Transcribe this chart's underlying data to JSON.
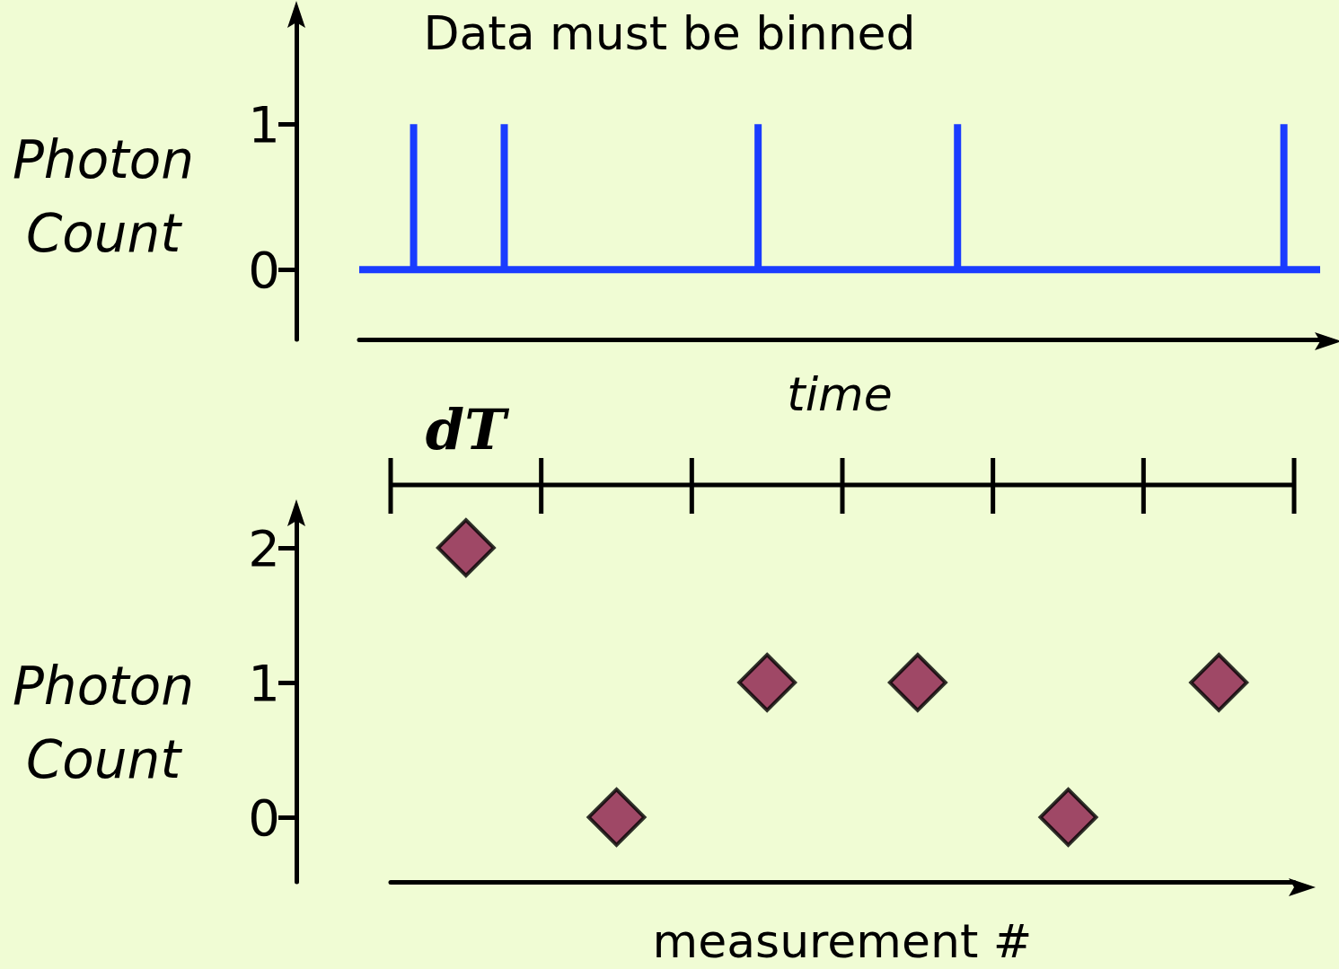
{
  "chart_data": [
    {
      "type": "line",
      "title": "Data must be binned",
      "xlabel": "time",
      "ylabel": "Photon Count",
      "categories": [
        null,
        null,
        null,
        null,
        null,
        null,
        null,
        null,
        null,
        null,
        null,
        null,
        null,
        null,
        null,
        null,
        null,
        null,
        null,
        null,
        null,
        null,
        null,
        null,
        null,
        null,
        null,
        null,
        null,
        null,
        null,
        null,
        null,
        null,
        null,
        null,
        null,
        null,
        null,
        null,
        null,
        null,
        null,
        null,
        null,
        null,
        null,
        null,
        null,
        null,
        null,
        null,
        null,
        null
      ],
      "series": [
        {
          "type": "line",
          "color": "#1a3cff",
          "values": [
            0,
            0,
            0,
            0,
            0,
            0,
            0,
            0,
            0,
            0,
            0,
            0,
            0,
            0,
            0,
            0,
            0,
            0,
            0,
            0,
            0,
            0,
            0,
            0,
            0,
            0,
            0,
            0,
            0,
            0,
            0,
            0,
            0,
            0,
            0,
            0,
            0,
            0,
            0,
            0,
            0,
            0,
            0,
            0,
            0,
            0,
            0,
            0,
            0,
            0,
            0,
            0,
            0,
            0
          ]
        },
        {
          "type": "bar",
          "color": "#1a3cff",
          "values": [
            null,
            null,
            null,
            1,
            null,
            null,
            null,
            null,
            1,
            null,
            null,
            null,
            null,
            null,
            null,
            null,
            null,
            null,
            null,
            null,
            null,
            null,
            1,
            null,
            null,
            null,
            null,
            null,
            null,
            null,
            null,
            null,
            null,
            1,
            null,
            null,
            null,
            null,
            null,
            null,
            null,
            null,
            null,
            null,
            null,
            null,
            null,
            null,
            null,
            null,
            null,
            1,
            null,
            null
          ]
        }
      ],
      "ylim": [
        -0.48,
        1.7
      ],
      "yticks": [
        0,
        1
      ],
      "tick_labels": "y",
      "grid": false,
      "marker": "none"
    },
    {
      "type": "scatter",
      "xlabel": "measurement #",
      "ylabel": "Photon Count",
      "categories": [
        null,
        null,
        null,
        null,
        null,
        null
      ],
      "values": [
        2,
        0,
        1,
        1,
        0,
        1
      ],
      "color": "#8b1a4a",
      "marker": "diamond",
      "ylim": [
        -0.48,
        2.2
      ],
      "yticks": [
        0,
        1,
        2
      ],
      "tick_labels": "y",
      "grid": false,
      "annotations": [
        "dT"
      ]
    }
  ]
}
